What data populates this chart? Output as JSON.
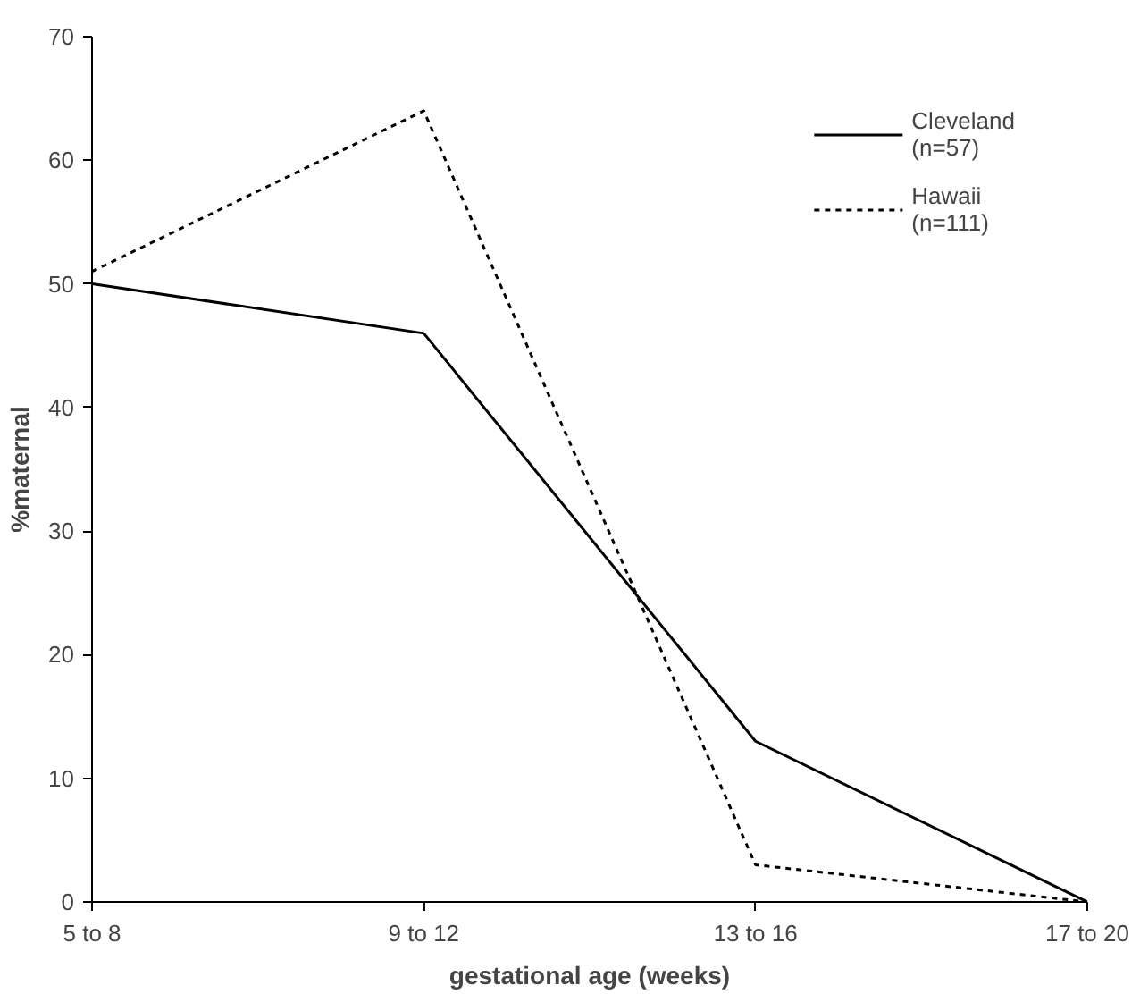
{
  "chart_data": {
    "type": "line",
    "xlabel": "gestational age (weeks)",
    "ylabel": "%maternal",
    "categories": [
      "5 to 8",
      "9 to 12",
      "13 to 16",
      "17 to 20"
    ],
    "series": [
      {
        "name": "Cleveland\n(n=57)",
        "color": "#000000",
        "line_style": "solid",
        "values": [
          50,
          46,
          13,
          0
        ]
      },
      {
        "name": "Hawaii\n(n=111)",
        "color": "#000000",
        "line_style": "dotted",
        "values": [
          51,
          64,
          3,
          0
        ]
      }
    ],
    "ylim": [
      0,
      70
    ],
    "yticks": [
      0,
      10,
      20,
      30,
      40,
      50,
      60,
      70
    ],
    "grid": false,
    "legend": "top right",
    "marker": "none"
  }
}
